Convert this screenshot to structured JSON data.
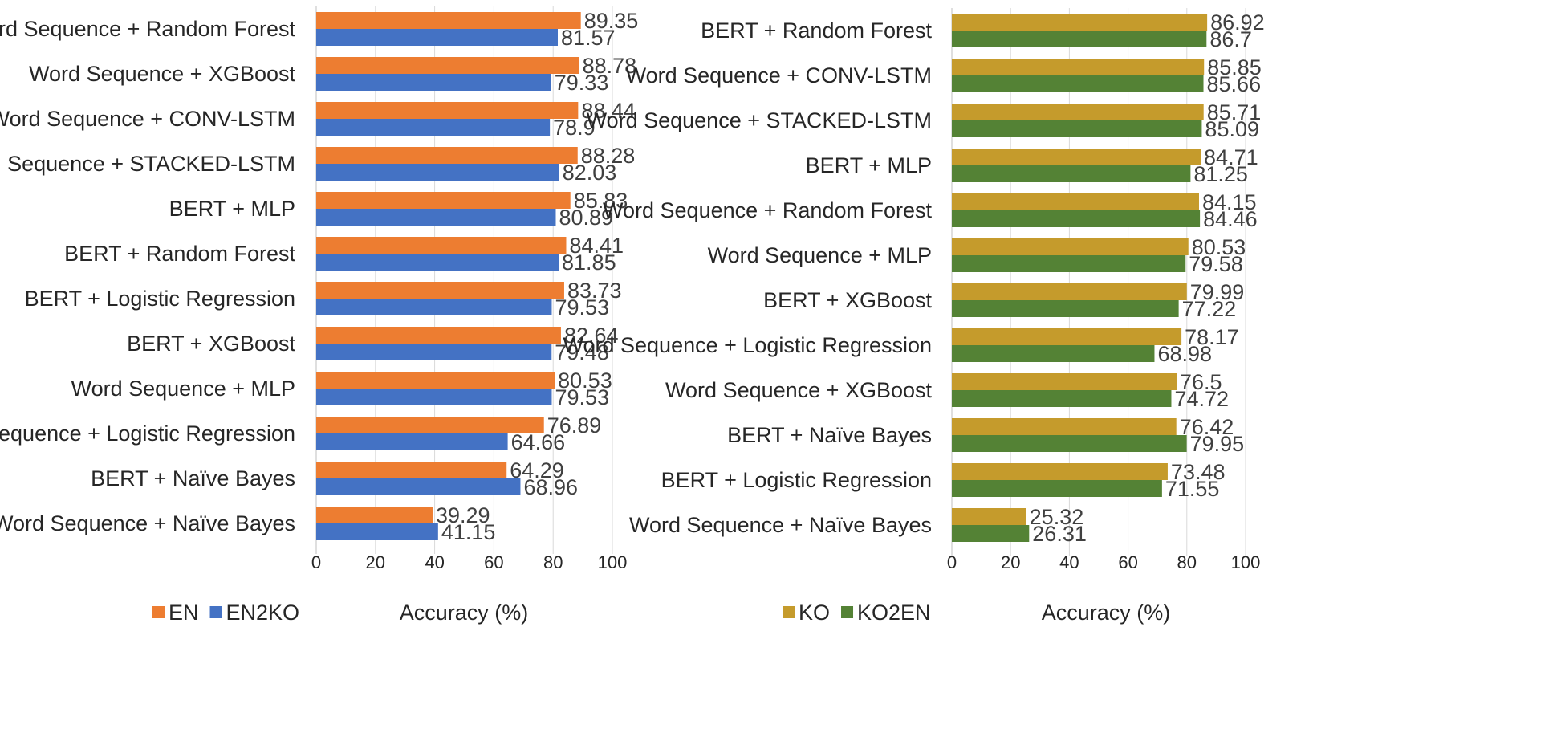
{
  "chart_data": [
    {
      "type": "bar",
      "orientation": "horizontal",
      "title": "",
      "xlabel": "Accuracy (%)",
      "xlim": [
        0,
        100
      ],
      "xticks": [
        0,
        20,
        40,
        60,
        80,
        100
      ],
      "grid": true,
      "legend_position": "bottom-left",
      "categories": [
        "Word Sequence + Random Forest",
        "Word Sequence + XGBoost",
        "Word Sequence + CONV-LSTM",
        "Word Sequence + STACKED-LSTM",
        "BERT + MLP",
        "BERT + Random Forest",
        "BERT + Logistic Regression",
        "BERT + XGBoost",
        "Word Sequence + MLP",
        "Word Sequence + Logistic Regression",
        "BERT + Naïve Bayes",
        "Word Sequence + Naïve Bayes"
      ],
      "series": [
        {
          "name": "EN",
          "color": "#ED7D31",
          "values": [
            89.35,
            88.78,
            88.44,
            88.28,
            85.83,
            84.41,
            83.73,
            82.64,
            80.53,
            76.89,
            64.29,
            39.29
          ]
        },
        {
          "name": "EN2KO",
          "color": "#4472C4",
          "values": [
            81.57,
            79.33,
            78.9,
            82.03,
            80.89,
            81.85,
            79.53,
            79.48,
            79.53,
            64.66,
            68.96,
            41.15
          ]
        }
      ]
    },
    {
      "type": "bar",
      "orientation": "horizontal",
      "title": "",
      "xlabel": "Accuracy (%)",
      "xlim": [
        0,
        100
      ],
      "xticks": [
        0,
        20,
        40,
        60,
        80,
        100
      ],
      "grid": true,
      "legend_position": "bottom-left",
      "categories": [
        "BERT + Random Forest",
        "Word Sequence + CONV-LSTM",
        "Word Sequence + STACKED-LSTM",
        "BERT + MLP",
        "Word Sequence + Random Forest",
        "Word Sequence + MLP",
        "BERT + XGBoost",
        "Word Sequence + Logistic Regression",
        "Word Sequence + XGBoost",
        "BERT + Naïve Bayes",
        "BERT + Logistic Regression",
        "Word Sequence + Naïve Bayes"
      ],
      "series": [
        {
          "name": "KO",
          "color": "#C59B2C",
          "values": [
            86.92,
            85.85,
            85.71,
            84.71,
            84.15,
            80.53,
            79.99,
            78.17,
            76.5,
            76.42,
            73.48,
            25.32
          ]
        },
        {
          "name": "KO2EN",
          "color": "#548235",
          "values": [
            86.7,
            85.66,
            85.09,
            81.25,
            84.46,
            79.58,
            77.22,
            68.98,
            74.72,
            79.95,
            71.55,
            26.31
          ]
        }
      ]
    }
  ]
}
